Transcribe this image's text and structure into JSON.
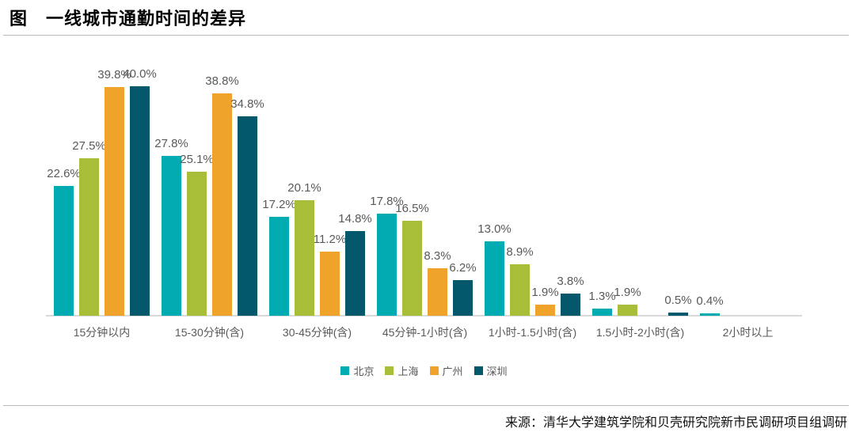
{
  "header": {
    "title": "图　一线城市通勤时间的差异"
  },
  "source": {
    "label": "来源：清华大学建筑学院和贝壳研究院新市民调研项目组调研"
  },
  "chart_data": {
    "type": "bar",
    "title": "图 一线城市通勤时间的差异",
    "categories": [
      "15分钟以内",
      "15-30分钟(含)",
      "30-45分钟(含)",
      "45分钟-1小时(含)",
      "1小时-1.5小时(含)",
      "1.5小时-2小时(含)",
      "2小时以上"
    ],
    "series": [
      {
        "name": "北京",
        "color": "#00ABB2",
        "values": [
          22.6,
          27.8,
          17.2,
          17.8,
          13.0,
          1.3,
          0.4
        ]
      },
      {
        "name": "上海",
        "color": "#A9BE38",
        "values": [
          27.5,
          25.1,
          20.1,
          16.5,
          8.9,
          1.9,
          null
        ]
      },
      {
        "name": "广州",
        "color": "#F0A32B",
        "values": [
          39.8,
          38.8,
          11.2,
          8.3,
          1.9,
          null,
          null
        ]
      },
      {
        "name": "深圳",
        "color": "#03586B",
        "values": [
          40.0,
          34.8,
          14.8,
          6.2,
          3.8,
          0.5,
          null
        ]
      }
    ],
    "value_suffix": "%",
    "xlabel": "",
    "ylabel": "",
    "ylim": [
      0,
      42
    ],
    "grid": false,
    "y_axis_visible": false,
    "data_labels": true,
    "legend_position": "bottom",
    "data_label_color": "#595959",
    "axis_label_color": "#595959",
    "axis_line_color": "#d9d9d9"
  }
}
